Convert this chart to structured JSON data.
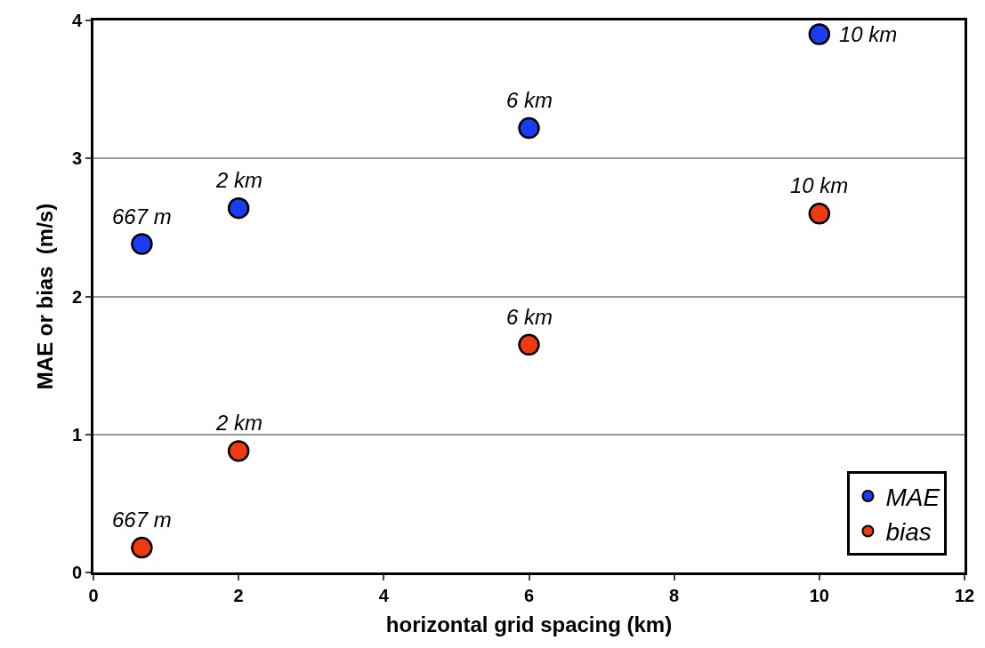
{
  "chart_data": {
    "type": "scatter",
    "xlabel": "horizontal grid spacing (km)",
    "ylabel": "MAE or bias  (m/s)",
    "xlim": [
      0,
      12
    ],
    "xticks": [
      0,
      2,
      4,
      6,
      8,
      10,
      12
    ],
    "ylim": [
      0,
      4
    ],
    "yticks": [
      0,
      1,
      2,
      3,
      4
    ],
    "grid": "y",
    "legend": "bottom right",
    "marker": "circle",
    "series": [
      {
        "name": "MAE",
        "color": "#1a3cf5",
        "x": [
          0.667,
          2,
          6,
          10
        ],
        "values": [
          2.38,
          2.64,
          3.22,
          3.9
        ]
      },
      {
        "name": "bias",
        "color": "#f03a10",
        "x": [
          0.667,
          2,
          6,
          10
        ],
        "values": [
          0.18,
          0.88,
          1.65,
          2.6
        ]
      }
    ],
    "annotations": [
      {
        "text": "667 m",
        "x": 0.667,
        "y": 2.38
      },
      {
        "text": "2 km",
        "x": 2,
        "y": 2.64
      },
      {
        "text": "6 km",
        "x": 6,
        "y": 3.22
      },
      {
        "text": "10 km",
        "x": 10,
        "y": 3.9
      },
      {
        "text": "667 m",
        "x": 0.667,
        "y": 0.18
      },
      {
        "text": "2 km",
        "x": 2,
        "y": 0.88
      },
      {
        "text": "6 km",
        "x": 6,
        "y": 1.65
      },
      {
        "text": "10 km",
        "x": 10,
        "y": 2.6
      }
    ]
  }
}
